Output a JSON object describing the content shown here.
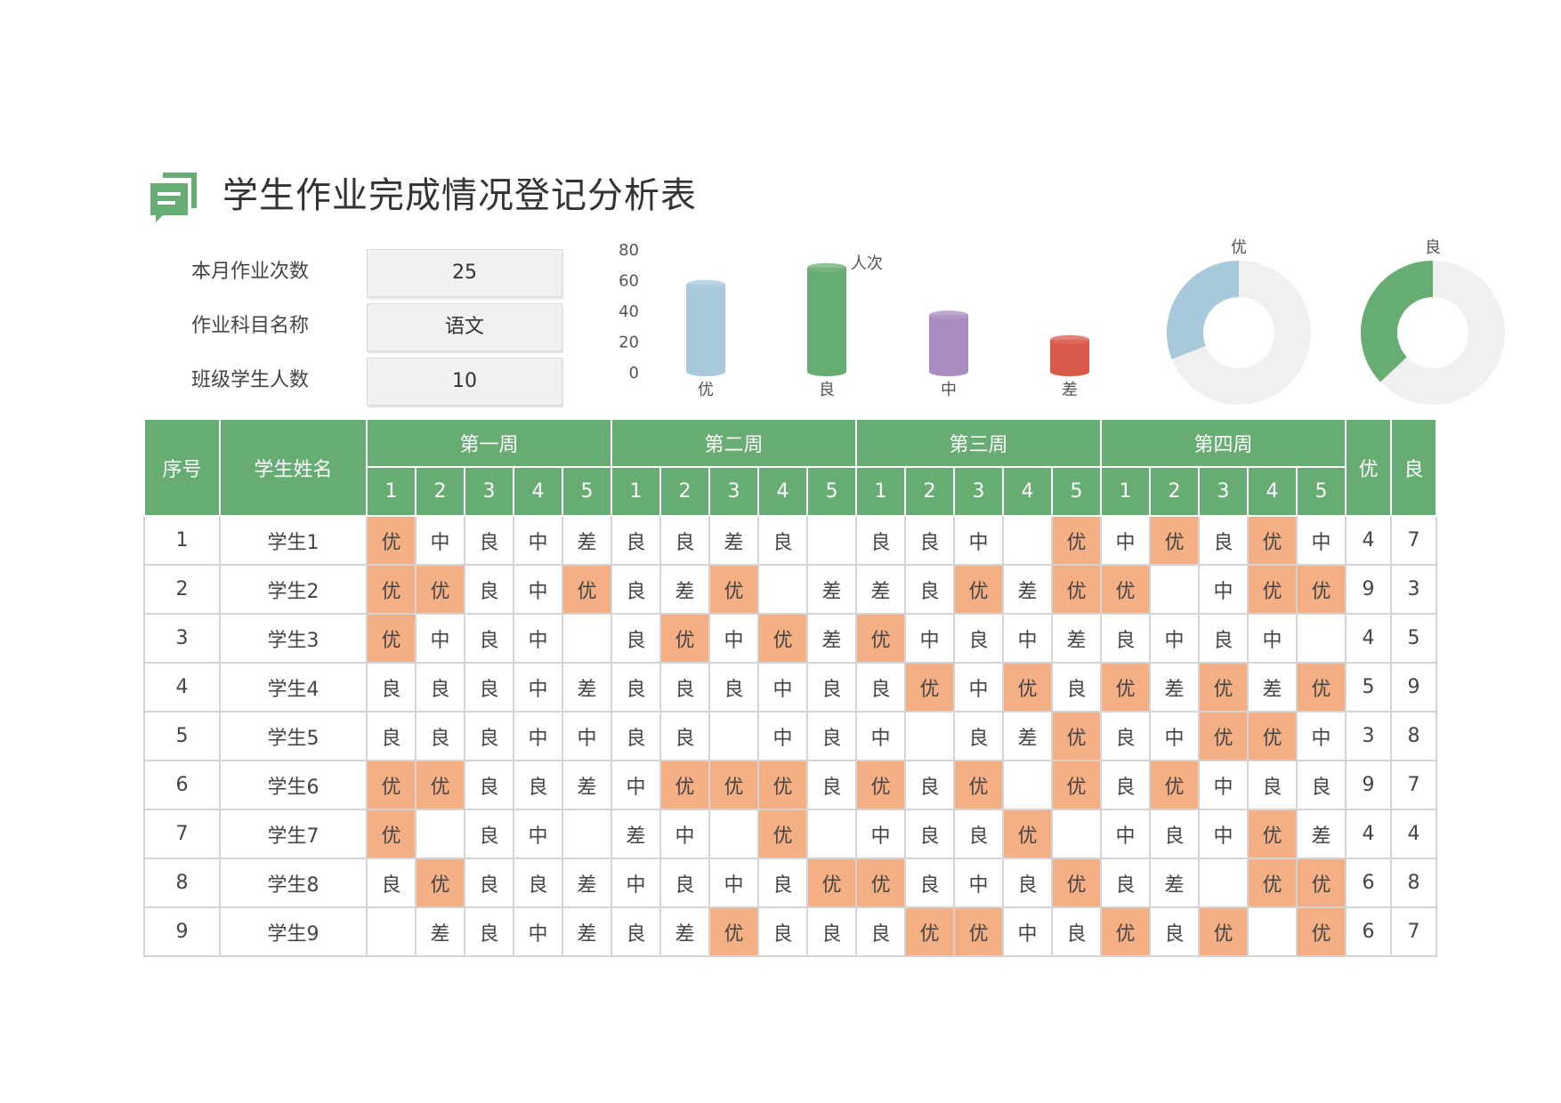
{
  "title": "学生作业完成情况登记分析表",
  "colors": {
    "header_green": "#67ad73",
    "excellent_fill": "#f4b084",
    "bar_you": "#a8c8dc",
    "bar_liang": "#67ad73",
    "bar_zhong": "#a88bc0",
    "bar_cha": "#d9594b",
    "donut_track": "#f0f0f0"
  },
  "info": {
    "monthly_count_label": "本月作业次数",
    "monthly_count_value": "25",
    "subject_label": "作业科目名称",
    "subject_value": "语文",
    "class_size_label": "班级学生人数",
    "class_size_value": "10"
  },
  "chart_data": [
    {
      "type": "bar",
      "categories": [
        "优",
        "良",
        "中",
        "差"
      ],
      "values": [
        57,
        68,
        37,
        21
      ],
      "ylabel": "人次",
      "yticks": [
        "80",
        "60",
        "40",
        "20",
        "0"
      ],
      "ylim": [
        0,
        80
      ],
      "colors": [
        "#a8c8dc",
        "#67ad73",
        "#a88bc0",
        "#d9594b"
      ]
    },
    {
      "type": "pie",
      "variant": "donut",
      "labels": [
        "优",
        "良"
      ],
      "values": [
        0.31,
        0.37
      ],
      "colors": [
        "#a8c8dc",
        "#67ad73"
      ]
    }
  ],
  "table": {
    "header_seq": "序号",
    "header_name": "学生姓名",
    "weeks": [
      "第一周",
      "第二周",
      "第三周",
      "第四周"
    ],
    "days": [
      "1",
      "2",
      "3",
      "4",
      "5"
    ],
    "summary_headers": [
      "优",
      "良"
    ],
    "rows": [
      {
        "seq": "1",
        "name": "学生1",
        "grades": [
          "优",
          "中",
          "良",
          "中",
          "差",
          "良",
          "良",
          "差",
          "良",
          "",
          "良",
          "良",
          "中",
          "",
          "优",
          "中",
          "优",
          "良",
          "优",
          "中"
        ],
        "you": "4",
        "liang": "7"
      },
      {
        "seq": "2",
        "name": "学生2",
        "grades": [
          "优",
          "优",
          "良",
          "中",
          "优",
          "良",
          "差",
          "优",
          "",
          "差",
          "差",
          "良",
          "优",
          "差",
          "优",
          "优",
          "",
          "中",
          "优",
          "优"
        ],
        "you": "9",
        "liang": "3"
      },
      {
        "seq": "3",
        "name": "学生3",
        "grades": [
          "优",
          "中",
          "良",
          "中",
          "",
          "良",
          "优",
          "中",
          "优",
          "差",
          "优",
          "中",
          "良",
          "中",
          "差",
          "良",
          "中",
          "良",
          "中",
          ""
        ],
        "you": "4",
        "liang": "5"
      },
      {
        "seq": "4",
        "name": "学生4",
        "grades": [
          "良",
          "良",
          "良",
          "中",
          "差",
          "良",
          "良",
          "良",
          "中",
          "良",
          "良",
          "优",
          "中",
          "优",
          "良",
          "优",
          "差",
          "优",
          "差",
          "优"
        ],
        "you": "5",
        "liang": "9"
      },
      {
        "seq": "5",
        "name": "学生5",
        "grades": [
          "良",
          "良",
          "良",
          "中",
          "中",
          "良",
          "良",
          "",
          "中",
          "良",
          "中",
          "",
          "良",
          "差",
          "优",
          "良",
          "中",
          "优",
          "优",
          "中"
        ],
        "you": "3",
        "liang": "8"
      },
      {
        "seq": "6",
        "name": "学生6",
        "grades": [
          "优",
          "优",
          "良",
          "良",
          "差",
          "中",
          "优",
          "优",
          "优",
          "良",
          "优",
          "良",
          "优",
          "",
          "优",
          "良",
          "优",
          "中",
          "良",
          "良"
        ],
        "you": "9",
        "liang": "7"
      },
      {
        "seq": "7",
        "name": "学生7",
        "grades": [
          "优",
          "",
          "良",
          "中",
          "",
          "差",
          "中",
          "",
          "优",
          "",
          "中",
          "良",
          "良",
          "优",
          "",
          "中",
          "良",
          "中",
          "优",
          "差"
        ],
        "you": "4",
        "liang": "4"
      },
      {
        "seq": "8",
        "name": "学生8",
        "grades": [
          "良",
          "优",
          "良",
          "良",
          "差",
          "中",
          "良",
          "中",
          "良",
          "优",
          "优",
          "良",
          "中",
          "良",
          "优",
          "良",
          "差",
          "",
          "优",
          "优"
        ],
        "you": "6",
        "liang": "8"
      },
      {
        "seq": "9",
        "name": "学生9",
        "grades": [
          "",
          "差",
          "良",
          "中",
          "差",
          "良",
          "差",
          "优",
          "良",
          "良",
          "良",
          "优",
          "优",
          "中",
          "良",
          "优",
          "良",
          "优",
          "",
          "优"
        ],
        "you": "6",
        "liang": "7"
      }
    ]
  }
}
